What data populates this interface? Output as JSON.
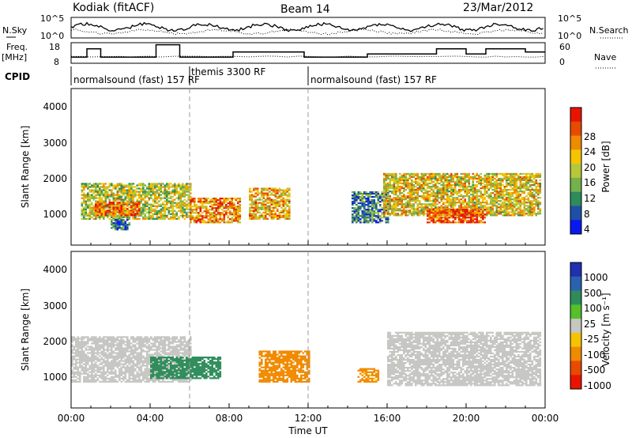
{
  "header": {
    "station": "Kodiak (fitACF)",
    "beam": "Beam 14",
    "date": "23/Mar/2012"
  },
  "strip_panels": {
    "nsky_label": "N.Sky",
    "nsearch_label": "N.Search",
    "freq_label_top": "Freq.",
    "freq_label_unit": "[MHz]",
    "nave_label": "Nave",
    "cpid_label": "CPID",
    "noise_ticks_left": [
      "10^5",
      "10^0"
    ],
    "noise_ticks_right": [
      "10^5",
      "10^0"
    ],
    "freq_ticks": [
      "18",
      "8"
    ],
    "nave_ticks": [
      "60",
      "0"
    ]
  },
  "cpid_segments": [
    {
      "label": "normalsound (fast) 157 RF",
      "start_hour": 0
    },
    {
      "label": "themis 3300 RF",
      "start_hour": 6
    },
    {
      "label": "normalsound (fast) 157 RF",
      "start_hour": 12
    }
  ],
  "x_axis": {
    "label": "Time UT",
    "ticks": [
      "00:00",
      "04:00",
      "08:00",
      "12:00",
      "16:00",
      "20:00",
      "00:00"
    ],
    "range_hours": [
      0,
      24
    ]
  },
  "power_panel": {
    "ylabel": "Slant Range [km]",
    "yticks": [
      "4000",
      "3000",
      "2000",
      "1000"
    ],
    "colorbar_label": "Power [dB]",
    "colorbar_ticks": [
      "28",
      "24",
      "20",
      "16",
      "12",
      "8",
      "4"
    ],
    "colors": [
      "#0a18f0",
      "#1e50a8",
      "#2e8c5a",
      "#74b04c",
      "#b4c83a",
      "#f5c400",
      "#f08a00",
      "#e84a00",
      "#e81400"
    ]
  },
  "velocity_panel": {
    "ylabel": "Slant Range [km]",
    "yticks": [
      "4000",
      "3000",
      "2000",
      "1000"
    ],
    "colorbar_label": "Velocity [m s⁻¹]",
    "colorbar_ticks": [
      "1000",
      "500",
      "100",
      "25",
      "-25",
      "-100",
      "-500",
      "-1000"
    ],
    "colors": [
      "#2030b0",
      "#2a62b0",
      "#2e8c5a",
      "#54c02a",
      "#c6c6c2",
      "#f5c400",
      "#f08a00",
      "#e84a00",
      "#e81400"
    ]
  },
  "chart_data": {
    "type": "heatmap",
    "x_unit": "hours UT",
    "y_unit": "slant range km",
    "ylim": [
      180,
      4600
    ],
    "power_regions": [
      {
        "x": [
          0.5,
          6.0
        ],
        "y": [
          900,
          1900
        ],
        "level": 16
      },
      {
        "x": [
          1.2,
          3.5
        ],
        "y": [
          1000,
          1400
        ],
        "level": 24
      },
      {
        "x": [
          2.0,
          3.0
        ],
        "y": [
          600,
          900
        ],
        "level": 8
      },
      {
        "x": [
          6.0,
          8.5
        ],
        "y": [
          800,
          1500
        ],
        "level": 22
      },
      {
        "x": [
          9.0,
          11.0
        ],
        "y": [
          900,
          1800
        ],
        "level": 20
      },
      {
        "x": [
          14.2,
          16.0
        ],
        "y": [
          800,
          1700
        ],
        "level": 10
      },
      {
        "x": [
          15.8,
          23.8
        ],
        "y": [
          1000,
          2200
        ],
        "level": 18
      },
      {
        "x": [
          18.0,
          21.0
        ],
        "y": [
          800,
          1200
        ],
        "level": 26
      }
    ],
    "velocity_regions": [
      {
        "x": [
          0.0,
          6.0
        ],
        "y": [
          900,
          2200
        ],
        "v": 0
      },
      {
        "x": [
          4.0,
          7.5
        ],
        "y": [
          1000,
          1600
        ],
        "v": 250
      },
      {
        "x": [
          9.5,
          12.0
        ],
        "y": [
          900,
          1800
        ],
        "v": -300
      },
      {
        "x": [
          14.5,
          15.5
        ],
        "y": [
          900,
          1300
        ],
        "v": -200
      },
      {
        "x": [
          16.0,
          23.8
        ],
        "y": [
          800,
          2300
        ],
        "v": 0
      }
    ]
  }
}
